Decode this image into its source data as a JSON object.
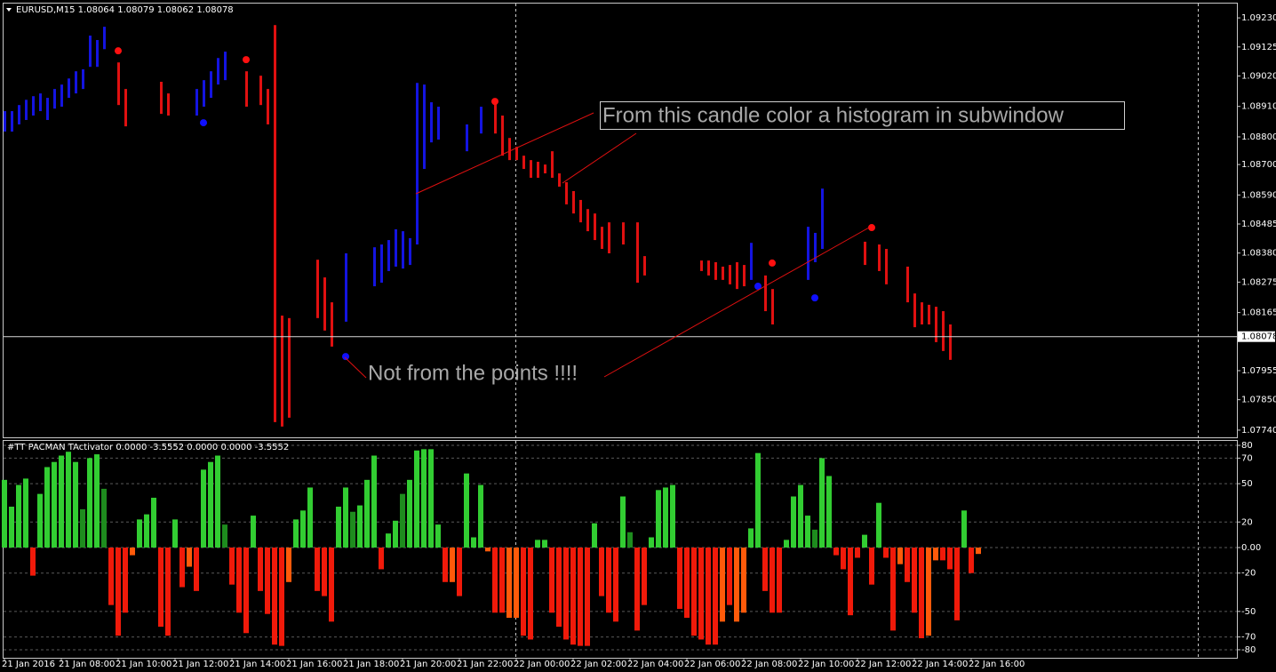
{
  "chart_data": [
    {
      "type": "ohlc",
      "title": "EURUSD,M15",
      "quote": [
        1.08064,
        1.08079,
        1.08062,
        1.08078
      ],
      "ylim": [
        1.07714,
        1.09285
      ],
      "yticks": [
        {
          "value": 1.0923,
          "label": "1.09230"
        },
        1.09125,
        {
          "value": 1.0902,
          "label": "1.09020"
        },
        {
          "value": 1.0891,
          "label": "1.08910"
        },
        {
          "value": 1.088,
          "label": "1.08800"
        },
        {
          "value": 1.087,
          "label": "1.08700"
        },
        {
          "value": 1.0859,
          "label": "1.08590"
        },
        1.08485,
        {
          "value": 1.0838,
          "label": "1.08380"
        },
        1.08275,
        1.08165,
        1.07955,
        {
          "value": 1.0785,
          "label": "1.07850"
        },
        {
          "value": 1.0774,
          "label": "1.07740"
        }
      ],
      "last_price": 1.08078,
      "bars": [
        {
          "x": 0,
          "high": 1.08893,
          "low": 1.08819,
          "color": "#1414e0"
        },
        {
          "x": 1,
          "high": 1.08893,
          "low": 1.08819,
          "color": "#1414e0"
        },
        {
          "x": 2,
          "high": 1.08915,
          "low": 1.08845,
          "color": "#1414e0"
        },
        {
          "x": 3,
          "high": 1.08934,
          "low": 1.08861,
          "color": "#1414e0"
        },
        {
          "x": 4,
          "high": 1.08947,
          "low": 1.08877,
          "color": "#1414e0"
        },
        {
          "x": 5,
          "high": 1.08957,
          "low": 1.08893,
          "color": "#1414e0"
        },
        {
          "x": 6,
          "high": 1.08941,
          "low": 1.08861,
          "color": "#1414e0"
        },
        {
          "x": 7,
          "high": 1.08973,
          "low": 1.08902,
          "color": "#1414e0"
        },
        {
          "x": 8,
          "high": 1.08989,
          "low": 1.08909,
          "color": "#1414e0"
        },
        {
          "x": 9,
          "high": 1.09011,
          "low": 1.08941,
          "color": "#1414e0"
        },
        {
          "x": 10,
          "high": 1.09037,
          "low": 1.08957,
          "color": "#1414e0"
        },
        {
          "x": 11,
          "high": 1.09044,
          "low": 1.08973,
          "color": "#1414e0"
        },
        {
          "x": 12,
          "high": 1.09166,
          "low": 1.09053,
          "color": "#1414e0"
        },
        {
          "x": 13,
          "high": 1.0915,
          "low": 1.09053,
          "color": "#1414e0"
        },
        {
          "x": 14,
          "high": 1.09198,
          "low": 1.09117,
          "color": "#1414e0"
        },
        {
          "x": 16,
          "high": 1.09069,
          "low": 1.08915,
          "color": "#e01010"
        },
        {
          "x": 17,
          "high": 1.08973,
          "low": 1.08838,
          "color": "#e01010"
        },
        {
          "x": 22,
          "high": 1.08999,
          "low": 1.08883,
          "color": "#e01010"
        },
        {
          "x": 23,
          "high": 1.08957,
          "low": 1.08877,
          "color": "#e01010"
        },
        {
          "x": 27,
          "high": 1.08973,
          "low": 1.08877,
          "color": "#1414e0"
        },
        {
          "x": 28,
          "high": 1.09005,
          "low": 1.08909,
          "color": "#1414e0"
        },
        {
          "x": 29,
          "high": 1.09037,
          "low": 1.08941,
          "color": "#1414e0"
        },
        {
          "x": 30,
          "high": 1.09085,
          "low": 1.08989,
          "color": "#1414e0"
        },
        {
          "x": 31,
          "high": 1.09108,
          "low": 1.09005,
          "color": "#1414e0"
        },
        {
          "x": 34,
          "high": 1.09037,
          "low": 1.08909,
          "color": "#e01010"
        },
        {
          "x": 36,
          "high": 1.09021,
          "low": 1.08915,
          "color": "#e01010"
        },
        {
          "x": 37,
          "high": 1.08973,
          "low": 1.08845,
          "color": "#e01010"
        },
        {
          "x": 38,
          "high": 1.09204,
          "low": 1.07769,
          "color": "#e01010"
        },
        {
          "x": 39,
          "high": 1.08154,
          "low": 1.07753,
          "color": "#e01010"
        },
        {
          "x": 40,
          "high": 1.08145,
          "low": 1.07785,
          "color": "#e01010"
        },
        {
          "x": 44,
          "high": 1.08356,
          "low": 1.08145,
          "color": "#e01010"
        },
        {
          "x": 45,
          "high": 1.08292,
          "low": 1.081,
          "color": "#e01010"
        },
        {
          "x": 46,
          "high": 1.08202,
          "low": 1.08042,
          "color": "#e01010"
        },
        {
          "x": 48,
          "high": 1.08379,
          "low": 1.08132,
          "color": "#1414e0"
        },
        {
          "x": 52,
          "high": 1.08401,
          "low": 1.0826,
          "color": "#1414e0"
        },
        {
          "x": 53,
          "high": 1.08411,
          "low": 1.08273,
          "color": "#1414e0"
        },
        {
          "x": 54,
          "high": 1.08427,
          "low": 1.08315,
          "color": "#1414e0"
        },
        {
          "x": 55,
          "high": 1.08466,
          "low": 1.08331,
          "color": "#1414e0"
        },
        {
          "x": 56,
          "high": 1.08459,
          "low": 1.08324,
          "color": "#1414e0"
        },
        {
          "x": 57,
          "high": 1.08434,
          "low": 1.08337,
          "color": "#1414e0"
        },
        {
          "x": 58,
          "high": 1.08995,
          "low": 1.08411,
          "color": "#1414e0"
        },
        {
          "x": 59,
          "high": 1.08989,
          "low": 1.08684,
          "color": "#1414e0"
        },
        {
          "x": 60,
          "high": 1.08925,
          "low": 1.0878,
          "color": "#1414e0"
        },
        {
          "x": 61,
          "high": 1.08909,
          "low": 1.0879,
          "color": "#1414e0"
        },
        {
          "x": 65,
          "high": 1.08845,
          "low": 1.08748,
          "color": "#1414e0"
        },
        {
          "x": 67,
          "high": 1.08909,
          "low": 1.08812,
          "color": "#1414e0"
        },
        {
          "x": 69,
          "high": 1.08934,
          "low": 1.08812,
          "color": "#e01010"
        },
        {
          "x": 70,
          "high": 1.08877,
          "low": 1.08732,
          "color": "#e01010"
        },
        {
          "x": 71,
          "high": 1.08796,
          "low": 1.08716,
          "color": "#e01010"
        },
        {
          "x": 72,
          "high": 1.08764,
          "low": 1.08716,
          "color": "#e01010"
        },
        {
          "x": 73,
          "high": 1.08732,
          "low": 1.08684,
          "color": "#e01010"
        },
        {
          "x": 74,
          "high": 1.08716,
          "low": 1.08652,
          "color": "#e01010"
        },
        {
          "x": 75,
          "high": 1.0871,
          "low": 1.08652,
          "color": "#e01010"
        },
        {
          "x": 76,
          "high": 1.087,
          "low": 1.08668,
          "color": "#e01010"
        },
        {
          "x": 77,
          "high": 1.08748,
          "low": 1.08652,
          "color": "#e01010"
        },
        {
          "x": 78,
          "high": 1.08668,
          "low": 1.0862,
          "color": "#e01010"
        },
        {
          "x": 79,
          "high": 1.08636,
          "low": 1.08556,
          "color": "#e01010"
        },
        {
          "x": 80,
          "high": 1.08604,
          "low": 1.08523,
          "color": "#e01010"
        },
        {
          "x": 81,
          "high": 1.08572,
          "low": 1.08491,
          "color": "#e01010"
        },
        {
          "x": 82,
          "high": 1.08539,
          "low": 1.08459,
          "color": "#e01010"
        },
        {
          "x": 83,
          "high": 1.08523,
          "low": 1.08427,
          "color": "#e01010"
        },
        {
          "x": 84,
          "high": 1.08475,
          "low": 1.08395,
          "color": "#e01010"
        },
        {
          "x": 85,
          "high": 1.08491,
          "low": 1.08379,
          "color": "#e01010"
        },
        {
          "x": 87,
          "high": 1.08491,
          "low": 1.08411,
          "color": "#e01010"
        },
        {
          "x": 89,
          "high": 1.08491,
          "low": 1.08273,
          "color": "#e01010"
        },
        {
          "x": 90,
          "high": 1.08369,
          "low": 1.08299,
          "color": "#e01010"
        },
        {
          "x": 98,
          "high": 1.08353,
          "low": 1.08315,
          "color": "#e01010"
        },
        {
          "x": 99,
          "high": 1.08353,
          "low": 1.08299,
          "color": "#e01010"
        },
        {
          "x": 100,
          "high": 1.08347,
          "low": 1.08283,
          "color": "#e01010"
        },
        {
          "x": 101,
          "high": 1.08331,
          "low": 1.08283,
          "color": "#e01010"
        },
        {
          "x": 102,
          "high": 1.08337,
          "low": 1.08267,
          "color": "#e01010"
        },
        {
          "x": 103,
          "high": 1.08347,
          "low": 1.0825,
          "color": "#e01010"
        },
        {
          "x": 104,
          "high": 1.08337,
          "low": 1.0826,
          "color": "#e01010"
        },
        {
          "x": 105,
          "high": 1.08417,
          "low": 1.08283,
          "color": "#1414e0"
        },
        {
          "x": 107,
          "high": 1.08299,
          "low": 1.0817,
          "color": "#e01010"
        },
        {
          "x": 108,
          "high": 1.0825,
          "low": 1.08122,
          "color": "#e01010"
        },
        {
          "x": 113,
          "high": 1.08475,
          "low": 1.08283,
          "color": "#1414e0"
        },
        {
          "x": 114,
          "high": 1.08453,
          "low": 1.08347,
          "color": "#1414e0"
        },
        {
          "x": 115,
          "high": 1.08613,
          "low": 1.08395,
          "color": "#1414e0"
        },
        {
          "x": 121,
          "high": 1.08421,
          "low": 1.08337,
          "color": "#e01010"
        },
        {
          "x": 123,
          "high": 1.08411,
          "low": 1.08315,
          "color": "#e01010"
        },
        {
          "x": 124,
          "high": 1.08395,
          "low": 1.08267,
          "color": "#e01010"
        },
        {
          "x": 127,
          "high": 1.08331,
          "low": 1.08202,
          "color": "#e01010"
        },
        {
          "x": 128,
          "high": 1.08234,
          "low": 1.08112,
          "color": "#e01010"
        },
        {
          "x": 129,
          "high": 1.08202,
          "low": 1.08122,
          "color": "#e01010"
        },
        {
          "x": 130,
          "high": 1.08193,
          "low": 1.08122,
          "color": "#e01010"
        },
        {
          "x": 131,
          "high": 1.08186,
          "low": 1.08058,
          "color": "#e01010"
        },
        {
          "x": 132,
          "high": 1.0817,
          "low": 1.08026,
          "color": "#e01010"
        },
        {
          "x": 133,
          "high": 1.08122,
          "low": 1.07994,
          "color": "#e01010"
        }
      ],
      "points": [
        {
          "x": 16,
          "value": 1.09111,
          "color": "#ff1010"
        },
        {
          "x": 34,
          "value": 1.09079,
          "color": "#ff1010"
        },
        {
          "x": 69,
          "value": 1.08928,
          "color": "#ff1010"
        },
        {
          "x": 108,
          "value": 1.08344,
          "color": "#ff1010"
        },
        {
          "x": 122,
          "value": 1.08472,
          "color": "#ff1010"
        },
        {
          "x": 28,
          "value": 1.08851,
          "color": "#1010ff"
        },
        {
          "x": 48,
          "value": 1.08006,
          "color": "#1010ff"
        },
        {
          "x": 106,
          "value": 1.0826,
          "color": "#1010ff"
        },
        {
          "x": 114,
          "value": 1.08218,
          "color": "#1010ff"
        }
      ],
      "annotations": [
        "From this candle color a histogram in subwindow",
        "Not from the points !!!!"
      ]
    },
    {
      "type": "bar",
      "title": "#TT PACMAN TActivator 0.0000 -3.5552 0.0000 0.0000 -3.5552",
      "ylim": [
        -86.3,
        84.2
      ],
      "yticks": [
        80,
        70,
        50,
        20,
        {
          "value": 0,
          "label": "0.00"
        },
        -20,
        -50,
        -70,
        -80
      ],
      "grid": true,
      "xticks": [
        {
          "value": 0,
          "label": "21 Jan 2016"
        },
        {
          "value": 8,
          "label": "21 Jan 08:00"
        },
        {
          "value": 16,
          "label": "21 Jan 10:00"
        },
        {
          "value": 24,
          "label": "21 Jan 12:00"
        },
        {
          "value": 32,
          "label": "21 Jan 14:00"
        },
        {
          "value": 40,
          "label": "21 Jan 16:00"
        },
        {
          "value": 48,
          "label": "21 Jan 18:00"
        },
        {
          "value": 56,
          "label": "21 Jan 20:00"
        },
        {
          "value": 64,
          "label": "21 Jan 22:00"
        },
        {
          "value": 72,
          "label": "22 Jan 00:00"
        },
        {
          "value": 80,
          "label": "22 Jan 02:00"
        },
        {
          "value": 88,
          "label": "22 Jan 04:00"
        },
        {
          "value": 96,
          "label": "22 Jan 06:00"
        },
        {
          "value": 104,
          "label": "22 Jan 08:00"
        },
        {
          "value": 112,
          "label": "22 Jan 10:00"
        },
        {
          "value": 120,
          "label": "22 Jan 12:00"
        },
        {
          "value": 128,
          "label": "22 Jan 14:00"
        },
        {
          "value": 136,
          "label": "22 Jan 16:00"
        }
      ],
      "values": [
        53,
        32,
        49,
        54,
        -22,
        42,
        63,
        67,
        72,
        75,
        67,
        30,
        70,
        73,
        46,
        -45,
        -69,
        -51,
        -6,
        22,
        26,
        39,
        -62,
        -69,
        22,
        -31,
        -15,
        -34,
        61,
        67,
        72,
        18,
        -29,
        -51,
        -67,
        25,
        -34,
        -52,
        -76,
        -77,
        -27,
        22,
        29,
        47,
        -34,
        -38,
        -58,
        32,
        47,
        28,
        33,
        53,
        72,
        -17,
        11,
        21,
        42,
        53,
        76,
        77,
        77,
        18,
        -27,
        -27,
        -38,
        58,
        8,
        49,
        -3,
        -51,
        -51,
        -55,
        -55,
        -69,
        -72,
        6,
        6,
        -51,
        -62,
        -72,
        -76,
        -77,
        -77,
        19,
        -38,
        -51,
        -58,
        40,
        12,
        -65,
        -45,
        8,
        45,
        47,
        49,
        -48,
        -55,
        -69,
        -72,
        -76,
        -76,
        -58,
        -45,
        -58,
        -51,
        15,
        74,
        -34,
        -51,
        -51,
        6,
        40,
        49,
        25,
        14,
        70,
        56,
        -6,
        -17,
        -53,
        -8,
        10,
        -29,
        35,
        -8,
        -65,
        -13,
        -27,
        -51,
        -71,
        -69,
        -10,
        -10,
        -17,
        -57,
        29,
        -20,
        -5
      ],
      "colors": [
        "#32cd32",
        "#32cd32",
        "#32cd32",
        "#32cd32",
        "#f01a0a",
        "#32cd32",
        "#32cd32",
        "#32cd32",
        "#32cd32",
        "#32cd32",
        "#32cd32",
        "#1e8c1e",
        "#32cd32",
        "#32cd32",
        "#1e8c1e",
        "#f01a0a",
        "#f01a0a",
        "#f01a0a",
        "#ff5a0a",
        "#32cd32",
        "#32cd32",
        "#32cd32",
        "#f01a0a",
        "#f01a0a",
        "#32cd32",
        "#f01a0a",
        "#ff5a0a",
        "#f01a0a",
        "#32cd32",
        "#32cd32",
        "#32cd32",
        "#1e8c1e",
        "#f01a0a",
        "#f01a0a",
        "#f01a0a",
        "#32cd32",
        "#f01a0a",
        "#f01a0a",
        "#f01a0a",
        "#f01a0a",
        "#ff5a0a",
        "#32cd32",
        "#32cd32",
        "#32cd32",
        "#f01a0a",
        "#f01a0a",
        "#f01a0a",
        "#32cd32",
        "#32cd32",
        "#1e8c1e",
        "#32cd32",
        "#32cd32",
        "#32cd32",
        "#f01a0a",
        "#32cd32",
        "#32cd32",
        "#1e8c1e",
        "#32cd32",
        "#32cd32",
        "#32cd32",
        "#32cd32",
        "#32cd32",
        "#f01a0a",
        "#ff5a0a",
        "#f01a0a",
        "#32cd32",
        "#32cd32",
        "#32cd32",
        "#ff5a0a",
        "#f01a0a",
        "#f01a0a",
        "#ff5a0a",
        "#ff5a0a",
        "#f01a0a",
        "#f01a0a",
        "#32cd32",
        "#32cd32",
        "#f01a0a",
        "#f01a0a",
        "#f01a0a",
        "#f01a0a",
        "#f01a0a",
        "#f01a0a",
        "#32cd32",
        "#f01a0a",
        "#f01a0a",
        "#f01a0a",
        "#32cd32",
        "#1e8c1e",
        "#f01a0a",
        "#f01a0a",
        "#32cd32",
        "#32cd32",
        "#32cd32",
        "#32cd32",
        "#f01a0a",
        "#f01a0a",
        "#f01a0a",
        "#f01a0a",
        "#f01a0a",
        "#f01a0a",
        "#ff5a0a",
        "#f01a0a",
        "#ff5a0a",
        "#ff5a0a",
        "#32cd32",
        "#32cd32",
        "#f01a0a",
        "#f01a0a",
        "#f01a0a",
        "#32cd32",
        "#32cd32",
        "#32cd32",
        "#32cd32",
        "#1e8c1e",
        "#32cd32",
        "#32cd32",
        "#f01a0a",
        "#f01a0a",
        "#f01a0a",
        "#f01a0a",
        "#32cd32",
        "#f01a0a",
        "#32cd32",
        "#f01a0a",
        "#f01a0a",
        "#ff5a0a",
        "#f01a0a",
        "#f01a0a",
        "#f01a0a",
        "#ff5a0a",
        "#ff5a0a",
        "#f01a0a",
        "#f01a0a",
        "#f01a0a",
        "#32cd32",
        "#f01a0a",
        "#ff5a0a"
      ]
    }
  ]
}
